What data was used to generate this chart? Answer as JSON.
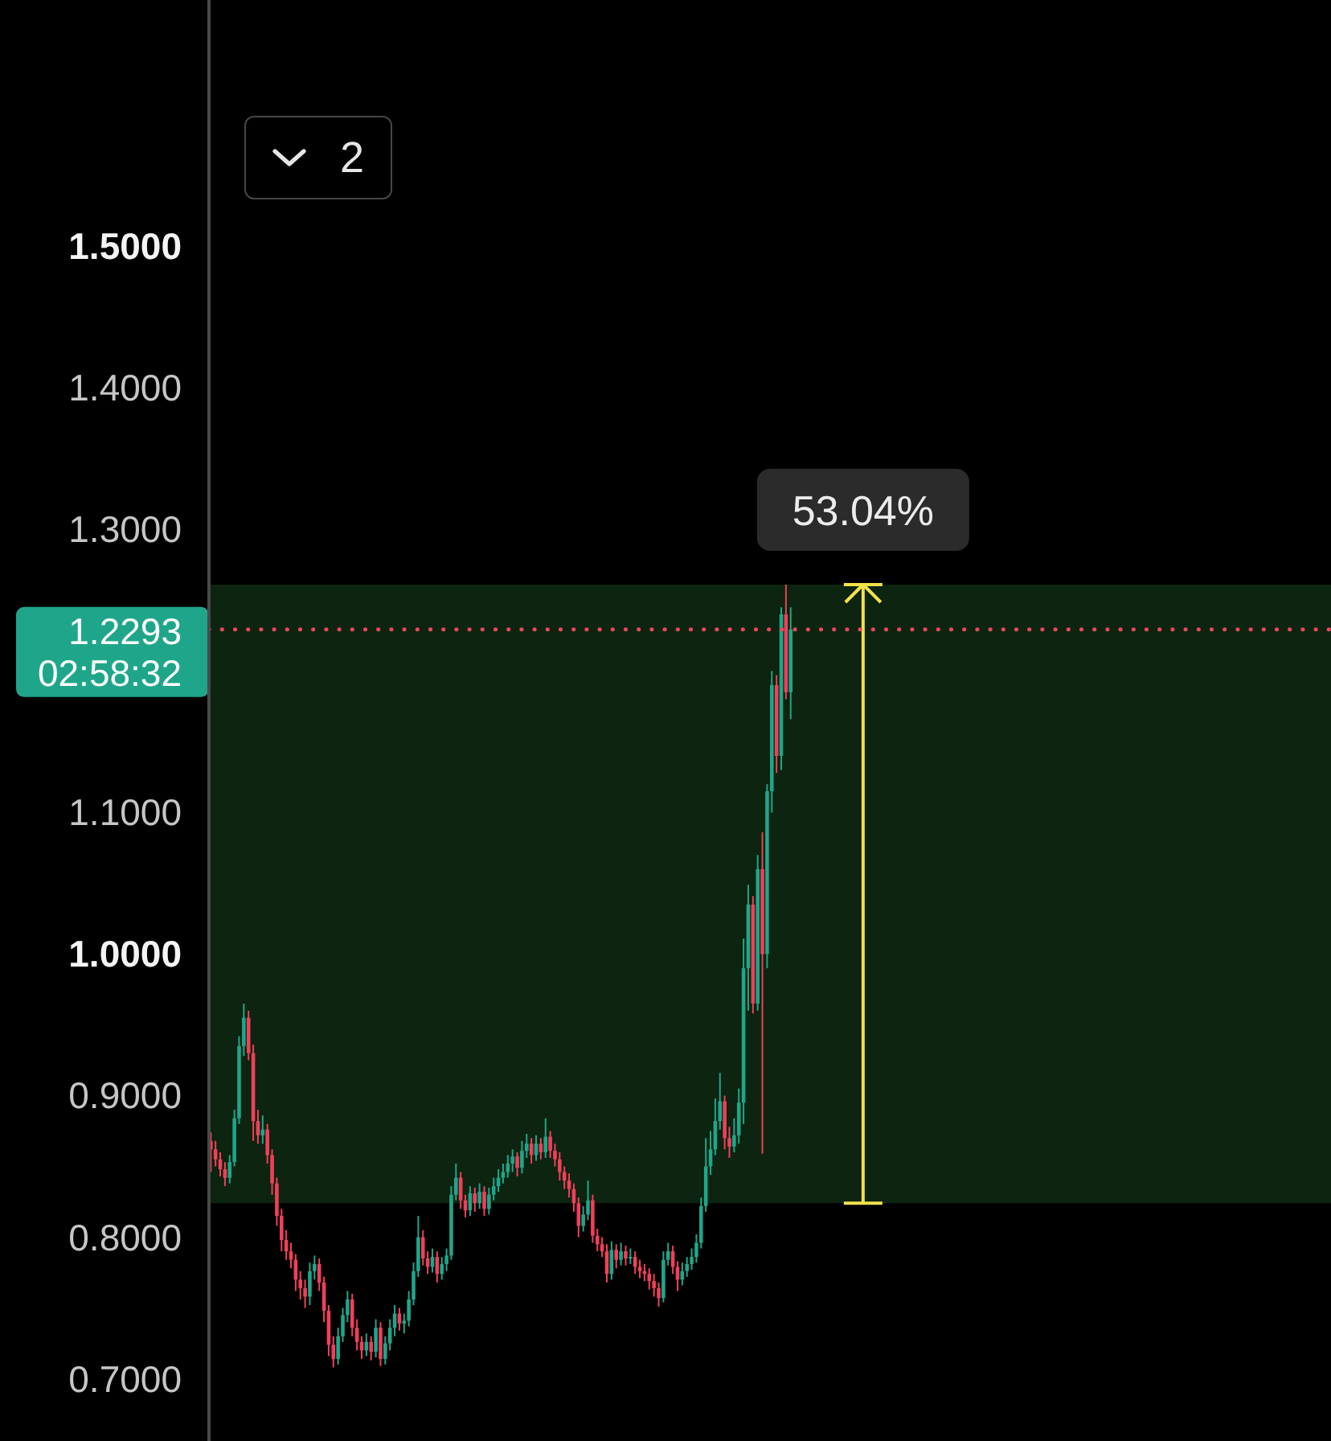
{
  "chart_data": {
    "type": "candlestick",
    "categories": [
      null,
      null,
      null,
      null,
      null,
      null,
      null,
      null,
      null,
      null,
      null,
      null,
      null,
      null,
      null,
      null,
      null,
      null,
      null,
      null,
      null,
      null,
      null,
      null,
      null,
      null,
      null,
      null,
      null,
      null,
      null,
      null,
      null,
      null,
      null,
      null,
      null,
      null,
      null,
      null,
      null,
      null,
      null,
      null,
      null,
      null,
      null,
      null,
      null,
      null,
      null,
      null,
      null,
      null,
      null,
      null,
      null,
      null,
      null,
      null,
      null,
      null,
      null,
      null,
      null,
      null,
      null,
      null,
      null,
      null,
      null,
      null,
      null,
      null,
      null,
      null,
      null,
      null,
      null,
      null,
      null,
      null,
      null,
      null,
      null,
      null,
      null,
      null,
      null,
      null,
      null,
      null,
      null,
      null,
      null,
      null,
      null,
      null,
      null,
      null,
      null,
      null,
      null,
      null,
      null,
      null,
      null,
      null,
      null,
      null,
      null,
      null,
      null,
      null,
      null,
      null,
      null,
      null,
      null,
      null,
      null,
      null,
      null,
      null,
      null,
      null,
      null,
      null,
      null,
      null,
      null,
      null,
      null,
      null,
      null,
      null,
      null,
      null,
      null,
      null,
      null,
      null,
      null,
      null,
      null,
      null,
      null,
      null,
      null,
      null,
      null,
      null,
      null,
      null,
      null,
      null,
      null,
      null,
      null,
      null,
      null,
      null,
      null,
      null,
      null,
      null,
      null,
      null,
      null,
      null,
      null,
      null,
      null,
      null,
      null,
      null,
      null,
      null,
      null,
      null,
      null,
      null,
      null,
      null,
      null,
      null,
      null,
      null,
      null,
      null,
      null,
      null,
      null,
      null,
      null,
      null,
      null,
      null,
      null,
      null,
      null,
      null,
      null,
      null,
      null,
      null,
      null,
      null,
      null,
      null,
      null,
      null,
      null,
      null,
      null,
      null,
      null,
      null,
      null,
      null,
      null,
      null,
      null,
      null,
      null,
      null,
      null,
      null,
      null,
      null,
      null,
      null,
      null,
      null,
      null,
      null,
      null,
      null
    ],
    "ohlc": [
      [
        0.868,
        0.874,
        0.846,
        0.862
      ],
      [
        0.862,
        0.868,
        0.85,
        0.855
      ],
      [
        0.855,
        0.86,
        0.843,
        0.848
      ],
      [
        0.848,
        0.853,
        0.836,
        0.842
      ],
      [
        0.842,
        0.858,
        0.838,
        0.853
      ],
      [
        0.853,
        0.89,
        0.85,
        0.884
      ],
      [
        0.884,
        0.942,
        0.88,
        0.935
      ],
      [
        0.935,
        0.965,
        0.928,
        0.955
      ],
      [
        0.955,
        0.96,
        0.925,
        0.93
      ],
      [
        0.93,
        0.936,
        0.868,
        0.882
      ],
      [
        0.882,
        0.89,
        0.866,
        0.872
      ],
      [
        0.872,
        0.886,
        0.866,
        0.876
      ],
      [
        0.876,
        0.88,
        0.852,
        0.858
      ],
      [
        0.858,
        0.862,
        0.83,
        0.838
      ],
      [
        0.838,
        0.842,
        0.808,
        0.815
      ],
      [
        0.815,
        0.82,
        0.79,
        0.798
      ],
      [
        0.798,
        0.805,
        0.784,
        0.79
      ],
      [
        0.79,
        0.796,
        0.778,
        0.784
      ],
      [
        0.784,
        0.788,
        0.762,
        0.77
      ],
      [
        0.77,
        0.776,
        0.756,
        0.764
      ],
      [
        0.764,
        0.77,
        0.75,
        0.758
      ],
      [
        0.758,
        0.782,
        0.752,
        0.776
      ],
      [
        0.776,
        0.787,
        0.77,
        0.781
      ],
      [
        0.781,
        0.785,
        0.762,
        0.768
      ],
      [
        0.768,
        0.772,
        0.74,
        0.748
      ],
      [
        0.748,
        0.752,
        0.716,
        0.724
      ],
      [
        0.724,
        0.73,
        0.708,
        0.714
      ],
      [
        0.714,
        0.736,
        0.71,
        0.73
      ],
      [
        0.73,
        0.75,
        0.726,
        0.745
      ],
      [
        0.745,
        0.762,
        0.74,
        0.756
      ],
      [
        0.756,
        0.76,
        0.73,
        0.736
      ],
      [
        0.736,
        0.742,
        0.72,
        0.726
      ],
      [
        0.726,
        0.73,
        0.714,
        0.72
      ],
      [
        0.72,
        0.732,
        0.716,
        0.726
      ],
      [
        0.726,
        0.73,
        0.713,
        0.719
      ],
      [
        0.719,
        0.742,
        0.715,
        0.736
      ],
      [
        0.736,
        0.74,
        0.709,
        0.714
      ],
      [
        0.714,
        0.73,
        0.71,
        0.725
      ],
      [
        0.725,
        0.742,
        0.72,
        0.736
      ],
      [
        0.736,
        0.752,
        0.73,
        0.746
      ],
      [
        0.746,
        0.75,
        0.734,
        0.739
      ],
      [
        0.739,
        0.746,
        0.732,
        0.741
      ],
      [
        0.741,
        0.762,
        0.737,
        0.756
      ],
      [
        0.756,
        0.782,
        0.752,
        0.776
      ],
      [
        0.776,
        0.815,
        0.772,
        0.8
      ],
      [
        0.8,
        0.805,
        0.78,
        0.785
      ],
      [
        0.785,
        0.79,
        0.774,
        0.779
      ],
      [
        0.779,
        0.792,
        0.775,
        0.786
      ],
      [
        0.786,
        0.79,
        0.768,
        0.774
      ],
      [
        0.774,
        0.786,
        0.77,
        0.781
      ],
      [
        0.781,
        0.792,
        0.776,
        0.787
      ],
      [
        0.787,
        0.836,
        0.784,
        0.83
      ],
      [
        0.83,
        0.852,
        0.826,
        0.842
      ],
      [
        0.842,
        0.846,
        0.82,
        0.826
      ],
      [
        0.826,
        0.83,
        0.814,
        0.819
      ],
      [
        0.819,
        0.836,
        0.815,
        0.831
      ],
      [
        0.831,
        0.835,
        0.818,
        0.824
      ],
      [
        0.824,
        0.838,
        0.82,
        0.832
      ],
      [
        0.832,
        0.836,
        0.815,
        0.82
      ],
      [
        0.82,
        0.835,
        0.816,
        0.83
      ],
      [
        0.83,
        0.842,
        0.826,
        0.836
      ],
      [
        0.836,
        0.848,
        0.832,
        0.842
      ],
      [
        0.842,
        0.852,
        0.838,
        0.846
      ],
      [
        0.846,
        0.858,
        0.842,
        0.852
      ],
      [
        0.852,
        0.862,
        0.846,
        0.857
      ],
      [
        0.857,
        0.86,
        0.843,
        0.849
      ],
      [
        0.849,
        0.868,
        0.845,
        0.861
      ],
      [
        0.861,
        0.873,
        0.856,
        0.866
      ],
      [
        0.866,
        0.87,
        0.852,
        0.858
      ],
      [
        0.858,
        0.872,
        0.854,
        0.866
      ],
      [
        0.866,
        0.87,
        0.855,
        0.86
      ],
      [
        0.86,
        0.884,
        0.856,
        0.871
      ],
      [
        0.871,
        0.875,
        0.856,
        0.861
      ],
      [
        0.861,
        0.866,
        0.85,
        0.855
      ],
      [
        0.855,
        0.86,
        0.84,
        0.846
      ],
      [
        0.846,
        0.85,
        0.834,
        0.84
      ],
      [
        0.84,
        0.845,
        0.828,
        0.834
      ],
      [
        0.834,
        0.838,
        0.818,
        0.824
      ],
      [
        0.824,
        0.828,
        0.8,
        0.808
      ],
      [
        0.808,
        0.822,
        0.804,
        0.816
      ],
      [
        0.816,
        0.84,
        0.812,
        0.826
      ],
      [
        0.826,
        0.83,
        0.796,
        0.801
      ],
      [
        0.801,
        0.806,
        0.79,
        0.795
      ],
      [
        0.795,
        0.8,
        0.786,
        0.79
      ],
      [
        0.79,
        0.795,
        0.768,
        0.774
      ],
      [
        0.774,
        0.797,
        0.77,
        0.791
      ],
      [
        0.791,
        0.795,
        0.778,
        0.784
      ],
      [
        0.784,
        0.796,
        0.78,
        0.79
      ],
      [
        0.79,
        0.794,
        0.78,
        0.785
      ],
      [
        0.785,
        0.792,
        0.781,
        0.786
      ],
      [
        0.786,
        0.79,
        0.774,
        0.779
      ],
      [
        0.779,
        0.784,
        0.771,
        0.776
      ],
      [
        0.776,
        0.781,
        0.769,
        0.774
      ],
      [
        0.774,
        0.778,
        0.763,
        0.769
      ],
      [
        0.769,
        0.774,
        0.758,
        0.764
      ],
      [
        0.764,
        0.768,
        0.751,
        0.757
      ],
      [
        0.757,
        0.79,
        0.754,
        0.784
      ],
      [
        0.784,
        0.796,
        0.78,
        0.79
      ],
      [
        0.79,
        0.794,
        0.774,
        0.779
      ],
      [
        0.779,
        0.783,
        0.762,
        0.77
      ],
      [
        0.77,
        0.782,
        0.766,
        0.776
      ],
      [
        0.776,
        0.786,
        0.772,
        0.781
      ],
      [
        0.781,
        0.792,
        0.777,
        0.786
      ],
      [
        0.786,
        0.802,
        0.782,
        0.796
      ],
      [
        0.796,
        0.828,
        0.792,
        0.822
      ],
      [
        0.822,
        0.87,
        0.818,
        0.85
      ],
      [
        0.85,
        0.875,
        0.844,
        0.862
      ],
      [
        0.862,
        0.898,
        0.858,
        0.882
      ],
      [
        0.882,
        0.916,
        0.876,
        0.896
      ],
      [
        0.896,
        0.9,
        0.862,
        0.87
      ],
      [
        0.87,
        0.878,
        0.856,
        0.864
      ],
      [
        0.864,
        0.884,
        0.86,
        0.872
      ],
      [
        0.872,
        0.905,
        0.866,
        0.895
      ],
      [
        0.895,
        1.011,
        0.88,
        0.99
      ],
      [
        0.99,
        1.049,
        0.96,
        1.035
      ],
      [
        1.035,
        1.041,
        0.958,
        0.965
      ],
      [
        0.965,
        1.07,
        0.96,
        1.06
      ],
      [
        1.06,
        1.086,
        0.859,
        1.0
      ],
      [
        1.0,
        1.12,
        0.99,
        1.115
      ],
      [
        1.115,
        1.2,
        1.1,
        1.19
      ],
      [
        1.19,
        1.197,
        1.128,
        1.14
      ],
      [
        1.14,
        1.245,
        1.13,
        1.24
      ],
      [
        1.24,
        1.261,
        1.18,
        1.185
      ],
      [
        1.185,
        1.245,
        1.166,
        1.2293
      ],
      null,
      null,
      null,
      null,
      null,
      null,
      null,
      null,
      null,
      null,
      null,
      null,
      null,
      null,
      null,
      null,
      null,
      null,
      null,
      null,
      null,
      null,
      null,
      null,
      null,
      null,
      null,
      null,
      null,
      null,
      null,
      null,
      null,
      null,
      null,
      null,
      null,
      null,
      null,
      null,
      null,
      null,
      null,
      null,
      null,
      null,
      null,
      null,
      null,
      null,
      null,
      null,
      null,
      null,
      null,
      null,
      null,
      null,
      null,
      null,
      null,
      null,
      null,
      null,
      null,
      null,
      null,
      null,
      null,
      null,
      null,
      null,
      null,
      null,
      null,
      null,
      null,
      null,
      null,
      null,
      null,
      null,
      null,
      null,
      null,
      null,
      null,
      null,
      null,
      null,
      null,
      null,
      null,
      null,
      null,
      null,
      null,
      null,
      null,
      null,
      null,
      null,
      null,
      null,
      null,
      null,
      null,
      null,
      null,
      null,
      null,
      null,
      null,
      null
    ],
    "colors": [
      "#f0405a",
      "#f0405a",
      "#f0405a",
      "#f0405a",
      "#1fa68a",
      "#1fa68a",
      "#1fa68a",
      "#1fa68a",
      "#f0405a",
      "#f0405a",
      "#f0405a",
      "#1fa68a",
      "#f0405a",
      "#f0405a",
      "#f0405a",
      "#f0405a",
      "#f0405a",
      "#f0405a",
      "#f0405a",
      "#f0405a",
      "#f0405a",
      "#1fa68a",
      "#1fa68a",
      "#f0405a",
      "#f0405a",
      "#f0405a",
      "#f0405a",
      "#1fa68a",
      "#1fa68a",
      "#1fa68a",
      "#f0405a",
      "#f0405a",
      "#f0405a",
      "#1fa68a",
      "#f0405a",
      "#1fa68a",
      "#f0405a",
      "#1fa68a",
      "#1fa68a",
      "#1fa68a",
      "#f0405a",
      "#1fa68a",
      "#1fa68a",
      "#1fa68a",
      "#1fa68a",
      "#f0405a",
      "#f0405a",
      "#1fa68a",
      "#f0405a",
      "#1fa68a",
      "#1fa68a",
      "#1fa68a",
      "#1fa68a",
      "#f0405a",
      "#f0405a",
      "#1fa68a",
      "#f0405a",
      "#1fa68a",
      "#f0405a",
      "#1fa68a",
      "#1fa68a",
      "#1fa68a",
      "#1fa68a",
      "#1fa68a",
      "#1fa68a",
      "#f0405a",
      "#1fa68a",
      "#1fa68a",
      "#f0405a",
      "#1fa68a",
      "#f0405a",
      "#1fa68a",
      "#f0405a",
      "#f0405a",
      "#f0405a",
      "#f0405a",
      "#f0405a",
      "#f0405a",
      "#f0405a",
      "#1fa68a",
      "#1fa68a",
      "#f0405a",
      "#f0405a",
      "#f0405a",
      "#f0405a",
      "#1fa68a",
      "#f0405a",
      "#1fa68a",
      "#f0405a",
      "#1fa68a",
      "#f0405a",
      "#f0405a",
      "#f0405a",
      "#f0405a",
      "#f0405a",
      "#f0405a",
      "#1fa68a",
      "#1fa68a",
      "#f0405a",
      "#f0405a",
      "#1fa68a",
      "#1fa68a",
      "#1fa68a",
      "#1fa68a",
      "#1fa68a",
      "#1fa68a",
      "#1fa68a",
      "#1fa68a",
      "#1fa68a",
      "#f0405a",
      "#f0405a",
      "#1fa68a",
      "#1fa68a",
      "#1fa68a",
      "#1fa68a",
      "#f0405a",
      "#1fa68a",
      "#f0405a",
      "#1fa68a",
      "#1fa68a",
      "#f0405a",
      "#1fa68a",
      "#f0405a",
      "#1fa68a",
      null,
      null,
      null,
      null,
      null,
      null,
      null,
      null,
      null,
      null,
      null,
      null,
      null,
      null,
      null,
      null,
      null,
      null,
      null,
      null,
      null,
      null,
      null,
      null,
      null,
      null,
      null,
      null,
      null,
      null,
      null,
      null,
      null,
      null,
      null,
      null,
      null,
      null,
      null,
      null,
      null,
      null,
      null,
      null,
      null,
      null,
      null,
      null,
      null,
      null,
      null,
      null,
      null,
      null,
      null,
      null,
      null,
      null,
      null,
      null,
      null,
      null,
      null,
      null,
      null,
      null,
      null,
      null,
      null,
      null,
      null,
      null,
      null,
      null,
      null,
      null,
      null,
      null,
      null,
      null,
      null,
      null,
      null,
      null,
      null,
      null,
      null,
      null,
      null,
      null,
      null,
      null,
      null,
      null,
      null,
      null,
      null,
      null,
      null,
      null,
      null,
      null,
      null,
      null,
      null,
      null,
      null,
      null,
      null,
      null,
      null,
      null,
      null,
      null
    ],
    "ylim": [
      0.656,
      1.674
    ],
    "yticks": [
      {
        "value": 0.7,
        "label": "0.7000"
      },
      {
        "value": 0.8,
        "label": "0.8000"
      },
      {
        "value": 0.9,
        "label": "0.9000"
      },
      {
        "value": 1.0,
        "label": "1.0000"
      },
      {
        "value": 1.1,
        "label": "1.1000"
      },
      {
        "value": 1.3,
        "label": "1.3000"
      },
      {
        "value": 1.4,
        "label": "1.4000"
      },
      {
        "value": 1.5,
        "label": "1.5000"
      }
    ],
    "tick_labels": "y",
    "ref_lines": [
      {
        "axis": "y",
        "value": 1.2293,
        "label": "1.2293",
        "color": "#e8485e",
        "line_style": "dotted"
      }
    ],
    "bands": [
      {
        "axis": "y",
        "from": 0.824,
        "to": 1.261,
        "label": "53.04%",
        "color": "#0c2410"
      }
    ],
    "annotations": [
      "02:58:32",
      "2"
    ]
  }
}
